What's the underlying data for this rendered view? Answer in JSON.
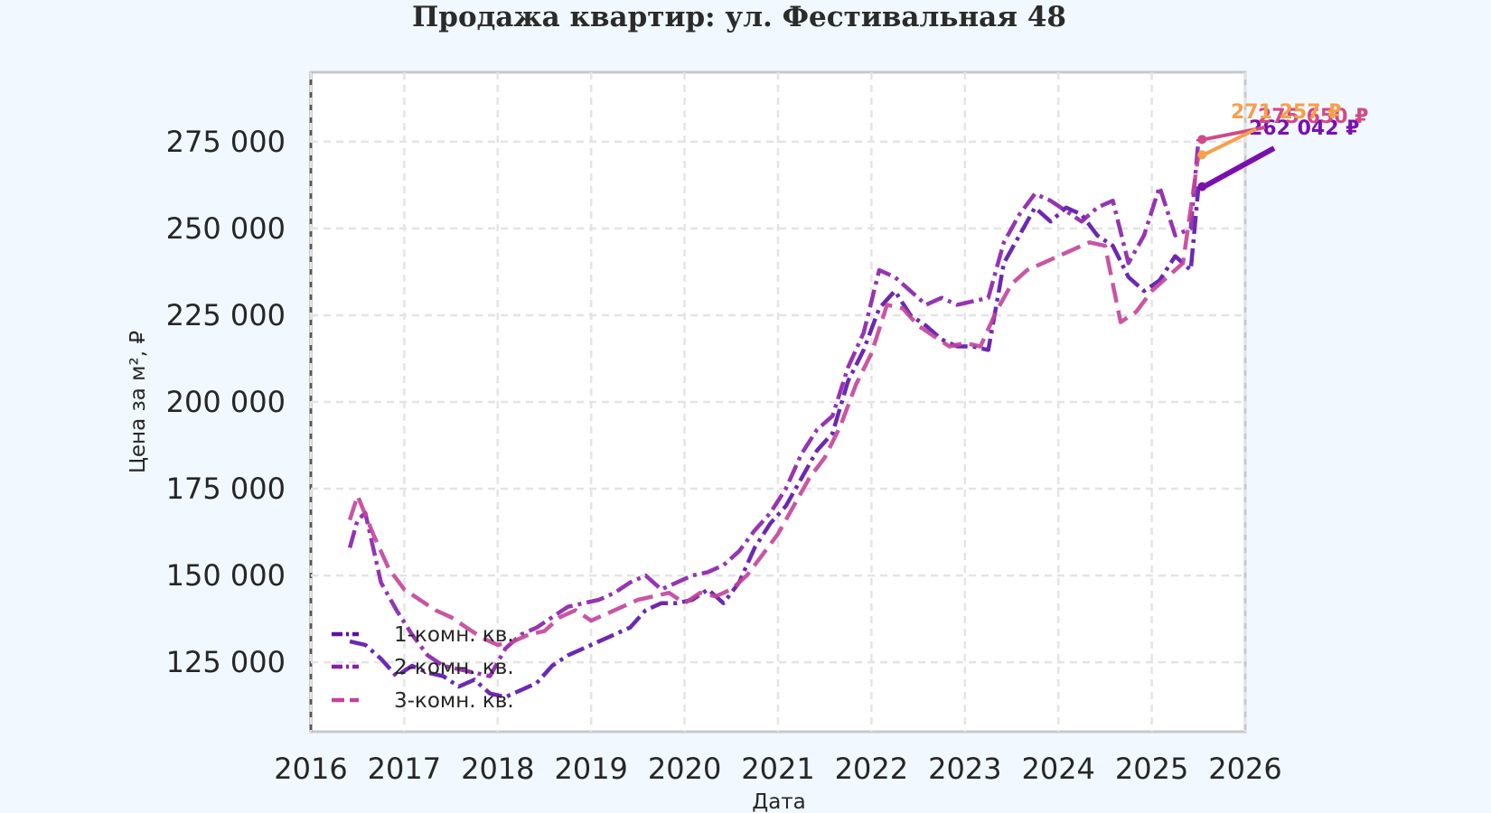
{
  "chart_data": {
    "type": "line",
    "title": "Продажа квартир: ул. Фестивальная 48",
    "xlabel": "Дата",
    "ylabel": "Цена за м², ₽",
    "xlim": [
      "2016-01-01",
      "2026-01-01"
    ],
    "ylim": [
      105000,
      295000
    ],
    "xticks": [
      "2016",
      "2017",
      "2018",
      "2019",
      "2020",
      "2021",
      "2022",
      "2023",
      "2024",
      "2025",
      "2026"
    ],
    "yticks": [
      125000,
      150000,
      175000,
      200000,
      225000,
      250000,
      275000
    ],
    "ytick_labels": [
      "125 000",
      "150 000",
      "175 000",
      "200 000",
      "225 000",
      "250 000",
      "275 000"
    ],
    "grid": true,
    "legend_position": "lower-left",
    "series": [
      {
        "name": "1-комн. кв.",
        "color": "#5b12a8",
        "dash": "dashdot",
        "points": [
          [
            "2016-06",
            131000
          ],
          [
            "2016-08",
            130000
          ],
          [
            "2016-10",
            126000
          ],
          [
            "2016-12",
            121000
          ],
          [
            "2017-02",
            124000
          ],
          [
            "2017-04",
            122000
          ],
          [
            "2017-06",
            121000
          ],
          [
            "2017-08",
            118000
          ],
          [
            "2017-10",
            120000
          ],
          [
            "2017-12",
            116000
          ],
          [
            "2018-02",
            115000
          ],
          [
            "2018-04",
            117000
          ],
          [
            "2018-06",
            119000
          ],
          [
            "2018-08",
            124000
          ],
          [
            "2018-10",
            127000
          ],
          [
            "2018-12",
            129000
          ],
          [
            "2019-02",
            131000
          ],
          [
            "2019-04",
            133000
          ],
          [
            "2019-06",
            135000
          ],
          [
            "2019-08",
            140000
          ],
          [
            "2019-10",
            142000
          ],
          [
            "2019-12",
            142000
          ],
          [
            "2020-02",
            143000
          ],
          [
            "2020-04",
            146000
          ],
          [
            "2020-06",
            142000
          ],
          [
            "2020-08",
            148000
          ],
          [
            "2020-10",
            158000
          ],
          [
            "2020-12",
            165000
          ],
          [
            "2021-02",
            170000
          ],
          [
            "2021-04",
            178000
          ],
          [
            "2021-06",
            186000
          ],
          [
            "2021-08",
            191000
          ],
          [
            "2021-10",
            206000
          ],
          [
            "2021-12",
            215000
          ],
          [
            "2022-02",
            227000
          ],
          [
            "2022-04",
            232000
          ],
          [
            "2022-06",
            225000
          ],
          [
            "2022-08",
            222000
          ],
          [
            "2022-10",
            218000
          ],
          [
            "2022-12",
            216000
          ],
          [
            "2023-02",
            216000
          ],
          [
            "2023-04",
            215000
          ],
          [
            "2023-06",
            240000
          ],
          [
            "2023-08",
            248000
          ],
          [
            "2023-10",
            256000
          ],
          [
            "2023-12",
            252000
          ],
          [
            "2024-02",
            256000
          ],
          [
            "2024-04",
            254000
          ],
          [
            "2024-06",
            248000
          ],
          [
            "2024-08",
            245000
          ],
          [
            "2024-10",
            236000
          ],
          [
            "2024-12",
            232000
          ],
          [
            "2025-02",
            235000
          ],
          [
            "2025-04",
            242000
          ],
          [
            "2025-06",
            238000
          ],
          [
            "2025-07",
            262042
          ]
        ]
      },
      {
        "name": "2-комн. кв.",
        "color": "#8a1fa8",
        "dash": "dashdot",
        "points": [
          [
            "2016-06",
            158000
          ],
          [
            "2016-07",
            166000
          ],
          [
            "2016-08",
            168000
          ],
          [
            "2016-10",
            148000
          ],
          [
            "2016-12",
            140000
          ],
          [
            "2017-02",
            133000
          ],
          [
            "2017-04",
            127000
          ],
          [
            "2017-06",
            124000
          ],
          [
            "2017-08",
            123000
          ],
          [
            "2017-10",
            122000
          ],
          [
            "2017-12",
            121000
          ],
          [
            "2018-02",
            129000
          ],
          [
            "2018-04",
            133000
          ],
          [
            "2018-06",
            135000
          ],
          [
            "2018-08",
            138000
          ],
          [
            "2018-10",
            141000
          ],
          [
            "2018-12",
            142000
          ],
          [
            "2019-02",
            143000
          ],
          [
            "2019-04",
            145000
          ],
          [
            "2019-06",
            148000
          ],
          [
            "2019-08",
            150000
          ],
          [
            "2019-10",
            146000
          ],
          [
            "2019-12",
            148000
          ],
          [
            "2020-02",
            150000
          ],
          [
            "2020-04",
            151000
          ],
          [
            "2020-06",
            153000
          ],
          [
            "2020-08",
            157000
          ],
          [
            "2020-10",
            163000
          ],
          [
            "2020-12",
            168000
          ],
          [
            "2021-02",
            175000
          ],
          [
            "2021-04",
            185000
          ],
          [
            "2021-06",
            192000
          ],
          [
            "2021-08",
            196000
          ],
          [
            "2021-10",
            210000
          ],
          [
            "2021-12",
            220000
          ],
          [
            "2022-02",
            238000
          ],
          [
            "2022-04",
            236000
          ],
          [
            "2022-06",
            232000
          ],
          [
            "2022-08",
            228000
          ],
          [
            "2022-10",
            230000
          ],
          [
            "2022-12",
            228000
          ],
          [
            "2023-02",
            229000
          ],
          [
            "2023-04",
            230000
          ],
          [
            "2023-06",
            246000
          ],
          [
            "2023-08",
            254000
          ],
          [
            "2023-10",
            260000
          ],
          [
            "2023-12",
            258000
          ],
          [
            "2024-02",
            255000
          ],
          [
            "2024-04",
            252000
          ],
          [
            "2024-06",
            256000
          ],
          [
            "2024-08",
            258000
          ],
          [
            "2024-10",
            240000
          ],
          [
            "2024-12",
            248000
          ],
          [
            "2025-02",
            262000
          ],
          [
            "2025-04",
            248000
          ],
          [
            "2025-06",
            250000
          ],
          [
            "2025-07",
            275650
          ]
        ]
      },
      {
        "name": "3-комн. кв.",
        "color": "#c2449a",
        "dash": "dashed",
        "points": [
          [
            "2016-06",
            166000
          ],
          [
            "2016-07",
            173000
          ],
          [
            "2016-09",
            162000
          ],
          [
            "2016-11",
            152000
          ],
          [
            "2017-01",
            146000
          ],
          [
            "2017-03",
            143000
          ],
          [
            "2017-05",
            140000
          ],
          [
            "2017-07",
            138000
          ],
          [
            "2017-09",
            135000
          ],
          [
            "2017-11",
            132000
          ],
          [
            "2018-01",
            130000
          ],
          [
            "2018-03",
            131000
          ],
          [
            "2018-05",
            133000
          ],
          [
            "2018-07",
            134000
          ],
          [
            "2018-09",
            138000
          ],
          [
            "2018-11",
            140000
          ],
          [
            "2019-01",
            137000
          ],
          [
            "2019-03",
            139000
          ],
          [
            "2019-05",
            141000
          ],
          [
            "2019-07",
            143000
          ],
          [
            "2019-09",
            144000
          ],
          [
            "2019-11",
            145000
          ],
          [
            "2020-01",
            142000
          ],
          [
            "2020-03",
            145000
          ],
          [
            "2020-05",
            144000
          ],
          [
            "2020-07",
            146000
          ],
          [
            "2020-09",
            150000
          ],
          [
            "2020-11",
            156000
          ],
          [
            "2021-01",
            162000
          ],
          [
            "2021-03",
            170000
          ],
          [
            "2021-05",
            178000
          ],
          [
            "2021-07",
            184000
          ],
          [
            "2021-09",
            193000
          ],
          [
            "2021-11",
            205000
          ],
          [
            "2022-01",
            214000
          ],
          [
            "2022-03",
            228000
          ],
          [
            "2022-05",
            227000
          ],
          [
            "2022-07",
            222000
          ],
          [
            "2022-09",
            219000
          ],
          [
            "2022-11",
            216000
          ],
          [
            "2023-01",
            217000
          ],
          [
            "2023-03",
            216000
          ],
          [
            "2023-05",
            226000
          ],
          [
            "2023-07",
            234000
          ],
          [
            "2023-09",
            238000
          ],
          [
            "2023-11",
            240000
          ],
          [
            "2024-01",
            242000
          ],
          [
            "2024-03",
            244000
          ],
          [
            "2024-05",
            246000
          ],
          [
            "2024-07",
            245000
          ],
          [
            "2024-09",
            223000
          ],
          [
            "2024-11",
            226000
          ],
          [
            "2025-01",
            232000
          ],
          [
            "2025-03",
            236000
          ],
          [
            "2025-05",
            240000
          ],
          [
            "2025-07",
            271257
          ]
        ]
      }
    ],
    "annotations": [
      {
        "series": "1-комн. кв.",
        "text": "262 042 ₽",
        "date": "2025-07",
        "value": 262042,
        "color": "#7a0fb0"
      },
      {
        "series": "2-комн. кв.",
        "text": "275 650 ₽",
        "date": "2025-07",
        "value": 275650,
        "color": "#d04a86"
      },
      {
        "series": "3-комн. кв.",
        "text": "271 257 ₽",
        "date": "2025-07",
        "value": 271257,
        "color": "#f5a04a"
      }
    ]
  }
}
